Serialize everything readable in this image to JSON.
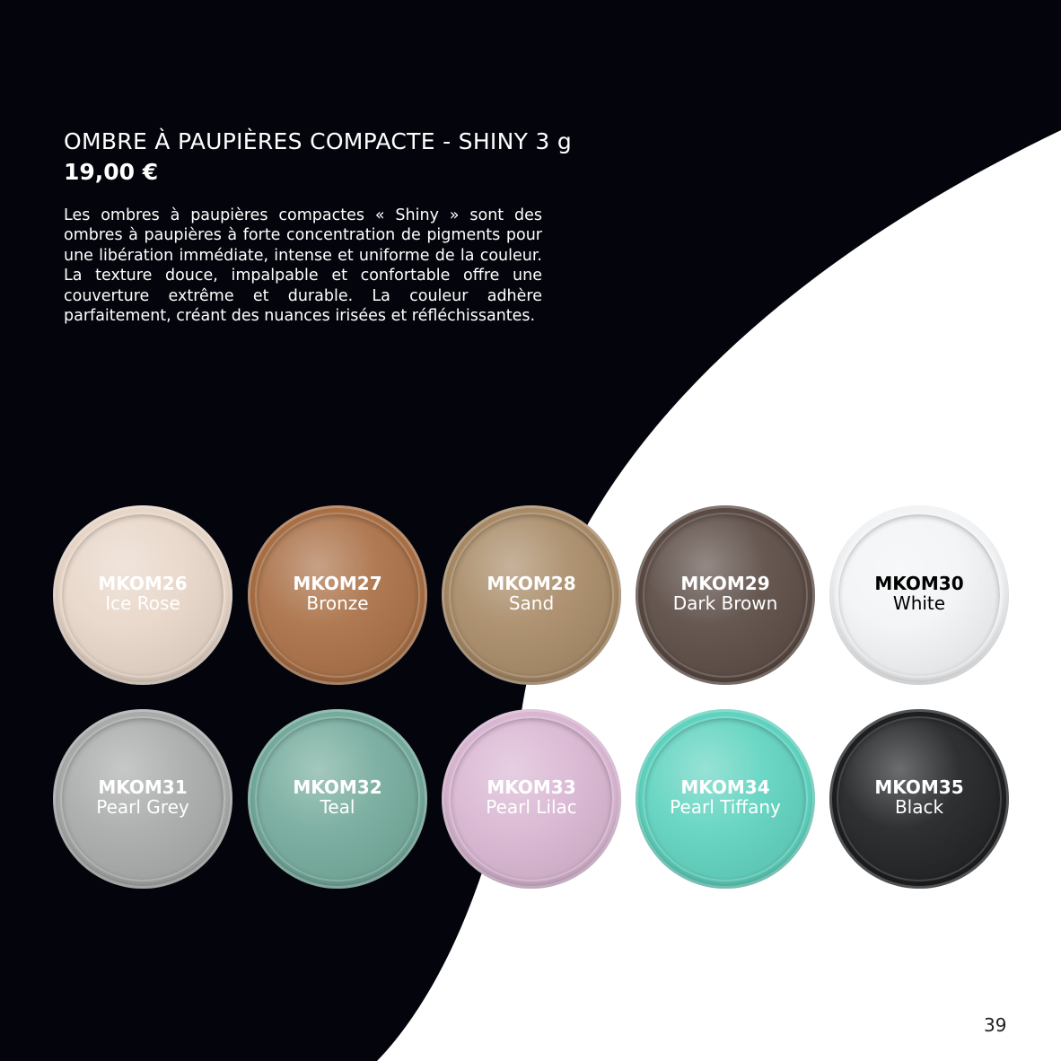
{
  "header": {
    "title": "OMBRE À PAUPIÈRES COMPACTE - SHINY 3 g",
    "price": "19,00 €"
  },
  "description": "Les ombres à paupières compactes « Shiny » sont des ombres à paupières à forte concentration de pigments pour une libération immédiate, intense et uniforme de la couleur. La texture douce, impalpable et confortable offre une couverture extrême et durable. La couleur adhère parfaitement, créant des nuances irisées et réfléchissantes.",
  "shades": [
    {
      "code": "MKOM26",
      "name": "Ice Rose",
      "color": "#e8d6c8",
      "text_color": "#ffffff"
    },
    {
      "code": "MKOM27",
      "name": "Bronze",
      "color": "#a96f45",
      "text_color": "#ffffff"
    },
    {
      "code": "MKOM28",
      "name": "Sand",
      "color": "#a88a66",
      "text_color": "#ffffff"
    },
    {
      "code": "MKOM29",
      "name": "Dark Brown",
      "color": "#5a4a43",
      "text_color": "#ffffff"
    },
    {
      "code": "MKOM30",
      "name": "White",
      "color": "#f2f4f6",
      "text_color": "#000000"
    },
    {
      "code": "MKOM31",
      "name": "Pearl Grey",
      "color": "#a9aaaa",
      "text_color": "#ffffff"
    },
    {
      "code": "MKOM32",
      "name": "Teal",
      "color": "#74ab9c",
      "text_color": "#ffffff"
    },
    {
      "code": "MKOM33",
      "name": "Pearl Lilac",
      "color": "#d9b6d2",
      "text_color": "#ffffff"
    },
    {
      "code": "MKOM34",
      "name": "Pearl Tiffany",
      "color": "#5fd3bf",
      "text_color": "#ffffff"
    },
    {
      "code": "MKOM35",
      "name": "Black",
      "color": "#1d1f21",
      "text_color": "#ffffff"
    }
  ],
  "page_number": "39",
  "colors": {
    "background_dark": "#04050c",
    "background_light": "#ffffff"
  }
}
